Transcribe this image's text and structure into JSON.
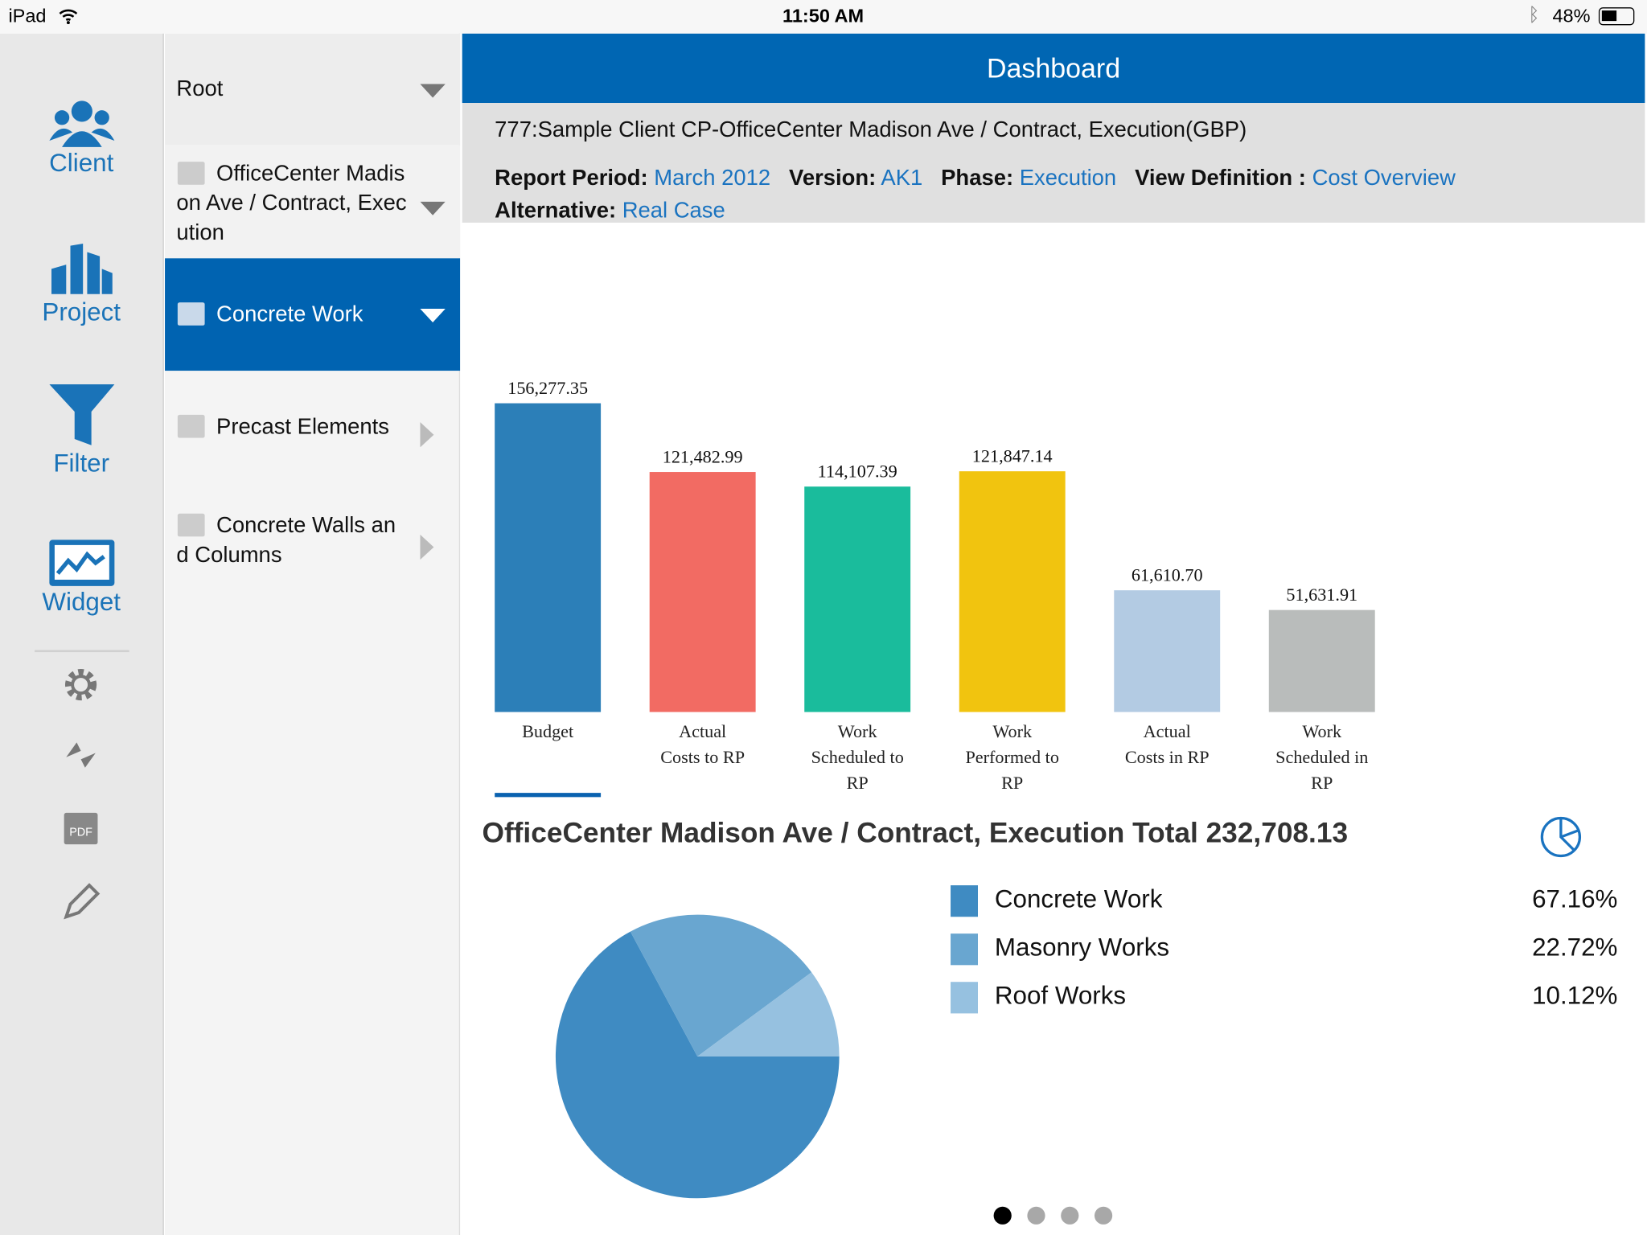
{
  "status_bar": {
    "device": "iPad",
    "time": "11:50 AM",
    "battery": "48%"
  },
  "rail": {
    "items": [
      {
        "label": "Client",
        "icon": "users-icon"
      },
      {
        "label": "Project",
        "icon": "buildings-icon"
      },
      {
        "label": "Filter",
        "icon": "funnel-icon"
      },
      {
        "label": "Widget",
        "icon": "chart-widget-icon"
      }
    ],
    "tools": [
      "gear-icon",
      "sync-icon",
      "pdf-icon",
      "pencil-icon"
    ]
  },
  "tree": {
    "nodes": [
      {
        "label": "Root",
        "state": "expanded"
      },
      {
        "label": "OfficeCenter Madison Ave / Contract, Execution",
        "state": "expanded"
      },
      {
        "label": "Concrete Work",
        "state": "selected"
      },
      {
        "label": "Precast Elements",
        "state": "collapsed"
      },
      {
        "label": "Concrete Walls and Columns",
        "state": "collapsed"
      }
    ]
  },
  "header": {
    "title": "Dashboard"
  },
  "info": {
    "context": "777:Sample Client CP-OfficeCenter Madison Ave / Contract, Execution(GBP)",
    "report_period_label": "Report Period:",
    "report_period": "March 2012",
    "version_label": "Version:",
    "version": "AK1",
    "phase_label": "Phase:",
    "phase": "Execution",
    "view_label": "View Definition :",
    "view": "Cost Overview",
    "alternative_label": "Alternative:",
    "alternative": "Real Case"
  },
  "chart_data": [
    {
      "type": "bar",
      "categories": [
        "Budget",
        "Actual Costs to RP",
        "Work Scheduled to RP",
        "Work Performed to RP",
        "Actual Costs in RP",
        "Work Scheduled in RP"
      ],
      "values": [
        156277.35,
        121482.99,
        114107.39,
        121847.14,
        61610.7,
        51631.91
      ],
      "data_labels": [
        "156,277.35",
        "121,482.99",
        "114,107.39",
        "121,847.14",
        "61,610.70",
        "51,631.91"
      ],
      "colors": [
        "#2c7fb8",
        "#f26b63",
        "#1abc9c",
        "#f1c40f",
        "#b3cbe3",
        "#b9bcbb"
      ],
      "selected_index": 0
    },
    {
      "type": "pie",
      "title": "OfficeCenter Madison Ave / Contract, Execution Total 232,708.13",
      "categories": [
        "Concrete Work",
        "Masonry Works",
        "Roof Works"
      ],
      "values": [
        67.16,
        22.72,
        10.12
      ],
      "labels": [
        "67.16%",
        "22.72%",
        "10.12%"
      ],
      "colors": [
        "#3f8bc2",
        "#69a6d0",
        "#96c1e0"
      ],
      "legend": "right"
    }
  ],
  "pagination": {
    "pages": 4,
    "current": 1
  }
}
